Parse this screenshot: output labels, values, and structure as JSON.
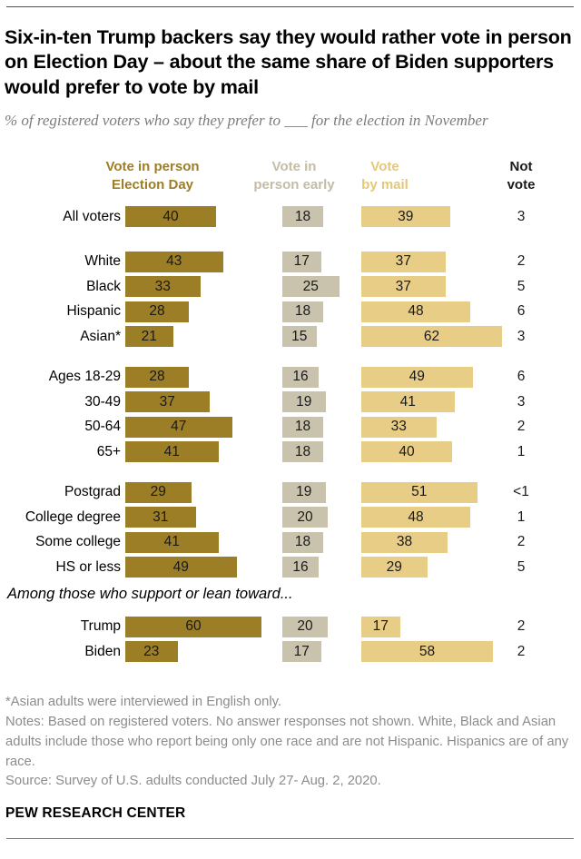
{
  "title": "Six-in-ten Trump backers say they would rather vote in person on Election Day – about the same share of Biden supporters would prefer to vote by mail",
  "subtitle": "% of registered voters who say they prefer to ___ for the election in November",
  "chart_data": {
    "type": "bar",
    "orientation": "horizontal",
    "unit": "% of registered voters",
    "value_labels_shown": true,
    "column_headers": [
      {
        "line1": "Vote in person",
        "line2": "Election Day",
        "color": "#9c7e26"
      },
      {
        "line1": "Vote in",
        "line2": "person early",
        "color": "#c3bda6"
      },
      {
        "line1": "Vote",
        "line2": "by mail",
        "color": "#e4c87a"
      },
      {
        "line1": "Not",
        "line2": "vote",
        "color": "#1a1a1a"
      }
    ],
    "bar_colors": [
      "#9c7e26",
      "#c9c3ae",
      "#e8cd87"
    ],
    "series_names": [
      "Vote in person Election Day",
      "Vote in person early",
      "Vote by mail",
      "Not vote"
    ],
    "groups": [
      {
        "rows": [
          {
            "label": "All voters",
            "values": [
              40,
              18,
              39
            ],
            "not_vote": "3"
          }
        ]
      },
      {
        "rows": [
          {
            "label": "White",
            "values": [
              43,
              17,
              37
            ],
            "not_vote": "2"
          },
          {
            "label": "Black",
            "values": [
              33,
              25,
              37
            ],
            "not_vote": "5"
          },
          {
            "label": "Hispanic",
            "values": [
              28,
              18,
              48
            ],
            "not_vote": "6"
          },
          {
            "label": "Asian*",
            "values": [
              21,
              15,
              62
            ],
            "not_vote": "3"
          }
        ]
      },
      {
        "rows": [
          {
            "label": "Ages 18-29",
            "values": [
              28,
              16,
              49
            ],
            "not_vote": "6"
          },
          {
            "label": "30-49",
            "values": [
              37,
              19,
              41
            ],
            "not_vote": "3"
          },
          {
            "label": "50-64",
            "values": [
              47,
              18,
              33
            ],
            "not_vote": "2"
          },
          {
            "label": "65+",
            "values": [
              41,
              18,
              40
            ],
            "not_vote": "1"
          }
        ]
      },
      {
        "rows": [
          {
            "label": "Postgrad",
            "values": [
              29,
              19,
              51
            ],
            "not_vote": "<1"
          },
          {
            "label": "College degree",
            "values": [
              31,
              20,
              48
            ],
            "not_vote": "1"
          },
          {
            "label": "Some college",
            "values": [
              41,
              18,
              38
            ],
            "not_vote": "2"
          },
          {
            "label": "HS or less",
            "values": [
              49,
              16,
              29
            ],
            "not_vote": "5"
          }
        ]
      },
      {
        "label": "Among those who support or lean toward...",
        "rows": [
          {
            "label": "Trump",
            "values": [
              60,
              20,
              17
            ],
            "not_vote": "2"
          },
          {
            "label": "Biden",
            "values": [
              23,
              17,
              58
            ],
            "not_vote": "2"
          }
        ]
      }
    ]
  },
  "notes": {
    "footnote": "*Asian adults were interviewed in English only.",
    "methodology": "Notes: Based on registered voters. No answer responses not shown. White, Black and Asian adults include those who report being only one race and are not Hispanic. Hispanics are of any race.",
    "source": "Source: Survey of U.S. adults conducted July 27- Aug. 2, 2020."
  },
  "footer": "PEW RESEARCH CENTER"
}
